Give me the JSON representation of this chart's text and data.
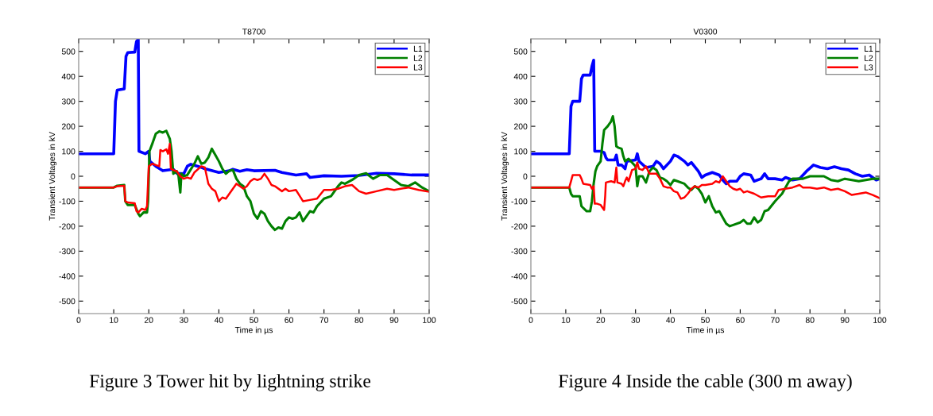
{
  "chart_data": [
    {
      "type": "line",
      "title": "T8700",
      "xlabel": "Time in µs",
      "ylabel": "Transient Voltages in kV",
      "xlim": [
        0,
        100
      ],
      "ylim": [
        -550,
        550
      ],
      "xticks": [
        0,
        10,
        20,
        30,
        40,
        50,
        60,
        70,
        80,
        90,
        100
      ],
      "yticks": [
        -500,
        -400,
        -300,
        -200,
        -100,
        0,
        100,
        200,
        300,
        400,
        500
      ],
      "grid": false,
      "legend": "top right",
      "marker": "none",
      "line_style": "solid",
      "annotations": [
        "Figure 3 Tower hit by lightning strike"
      ],
      "series": [
        {
          "name": "L1",
          "color": "#0000ff",
          "x": [
            0,
            10,
            10.5,
            11,
            13,
            13.5,
            14,
            16,
            16.5,
            17,
            17.2,
            19,
            20,
            20.3,
            22,
            24,
            27,
            28,
            30,
            31,
            32,
            34,
            36,
            40,
            43,
            44,
            46,
            48,
            50,
            56,
            58,
            62,
            65,
            66,
            70,
            75,
            80,
            85,
            90,
            95,
            100
          ],
          "values": [
            90,
            90,
            300,
            345,
            350,
            480,
            495,
            497,
            540,
            548,
            100,
            90,
            100,
            60,
            40,
            22,
            28,
            12,
            10,
            40,
            48,
            40,
            30,
            15,
            22,
            28,
            20,
            26,
            22,
            24,
            15,
            5,
            10,
            -5,
            2,
            0,
            3,
            12,
            10,
            5,
            5
          ]
        },
        {
          "name": "L2",
          "color": "#008000",
          "x": [
            0,
            10,
            11,
            13,
            13.3,
            14,
            16,
            17,
            17.5,
            18.5,
            19.5,
            19.8,
            20.2,
            21,
            22,
            23,
            24,
            25,
            26,
            26.5,
            27,
            28,
            28.5,
            29,
            29.3,
            30,
            31,
            33,
            34,
            35,
            36,
            37,
            38,
            39,
            40,
            41,
            42,
            43,
            44,
            45,
            46,
            47,
            48,
            49,
            50,
            51,
            52,
            53,
            54,
            55,
            56,
            57,
            58,
            59,
            60,
            61,
            62,
            63,
            64,
            65,
            66,
            67,
            68,
            70,
            72,
            74,
            75,
            76,
            78,
            80,
            82,
            84,
            86,
            88,
            90,
            92,
            94,
            96,
            98,
            100
          ],
          "values": [
            -45,
            -45,
            -38,
            -35,
            -100,
            -115,
            -115,
            -150,
            -160,
            -145,
            -145,
            -100,
            100,
            130,
            170,
            180,
            175,
            182,
            150,
            100,
            10,
            20,
            0,
            -65,
            10,
            0,
            5,
            50,
            80,
            50,
            55,
            75,
            110,
            85,
            60,
            30,
            10,
            22,
            25,
            -10,
            -30,
            -40,
            -80,
            -100,
            -150,
            -170,
            -140,
            -150,
            -180,
            -200,
            -215,
            -205,
            -210,
            -180,
            -165,
            -170,
            -165,
            -145,
            -180,
            -160,
            -140,
            -145,
            -120,
            -90,
            -80,
            -40,
            -25,
            -30,
            -15,
            5,
            12,
            -10,
            5,
            5,
            -15,
            -35,
            -40,
            -25,
            -45,
            -60
          ]
        },
        {
          "name": "L3",
          "color": "#ff0000",
          "x": [
            0,
            10,
            11,
            13,
            13.3,
            14,
            16,
            16.5,
            17,
            18,
            19,
            19.5,
            20,
            21,
            22,
            23,
            23.3,
            24,
            25,
            25.5,
            26,
            26.3,
            27,
            28,
            29,
            30,
            31,
            32,
            33,
            35,
            36,
            37,
            38,
            39,
            40,
            41,
            42,
            43,
            44,
            45,
            46,
            47,
            48,
            49,
            50,
            51,
            52,
            53,
            54,
            55,
            56,
            58,
            59,
            60,
            62,
            64,
            66,
            68,
            70,
            72,
            74,
            76,
            78,
            80,
            82,
            85,
            88,
            90,
            94,
            97,
            100
          ],
          "values": [
            -45,
            -45,
            -40,
            -38,
            -100,
            -105,
            -108,
            -140,
            -145,
            -130,
            -135,
            -120,
            40,
            50,
            45,
            40,
            105,
            100,
            108,
            90,
            130,
            30,
            25,
            20,
            0,
            -10,
            -5,
            -10,
            15,
            40,
            35,
            -30,
            -50,
            -60,
            -100,
            -85,
            -90,
            -70,
            -50,
            -30,
            -40,
            -50,
            -40,
            -20,
            -10,
            -15,
            -10,
            10,
            -10,
            -35,
            -40,
            -60,
            -50,
            -60,
            -55,
            -100,
            -95,
            -90,
            -55,
            -55,
            -50,
            -40,
            -35,
            -60,
            -70,
            -60,
            -50,
            -55,
            -45,
            -55,
            -62
          ]
        }
      ]
    },
    {
      "type": "line",
      "title": "V0300",
      "xlabel": "Time in µs",
      "ylabel": "Transient Voltages in kV",
      "xlim": [
        0,
        100
      ],
      "ylim": [
        -550,
        550
      ],
      "xticks": [
        0,
        10,
        20,
        30,
        40,
        50,
        60,
        70,
        80,
        90,
        100
      ],
      "yticks": [
        -500,
        -400,
        -300,
        -200,
        -100,
        0,
        100,
        200,
        300,
        400,
        500
      ],
      "grid": false,
      "legend": "top right",
      "marker": "none",
      "line_style": "solid",
      "annotations": [
        "Figure 4 Inside the cable (300 m away)"
      ],
      "series": [
        {
          "name": "L1",
          "color": "#0000ff",
          "x": [
            0,
            11,
            11.5,
            12,
            14,
            14.5,
            15,
            17,
            17.5,
            18,
            18.3,
            20,
            21,
            21.5,
            22,
            24,
            24.5,
            25,
            26,
            27,
            27.5,
            30,
            30.5,
            31,
            33,
            35,
            36,
            37,
            38,
            40,
            41,
            42,
            44,
            45,
            46,
            48,
            49,
            50,
            52,
            54,
            55,
            56,
            57,
            59,
            60,
            61,
            63,
            64,
            66,
            67,
            68,
            70,
            72,
            73,
            75,
            77,
            79,
            81,
            83,
            85,
            87,
            89,
            91,
            93,
            95,
            97,
            99,
            100
          ],
          "values": [
            90,
            90,
            280,
            300,
            300,
            390,
            405,
            405,
            440,
            465,
            100,
            100,
            95,
            75,
            65,
            65,
            85,
            45,
            45,
            30,
            60,
            65,
            90,
            60,
            35,
            40,
            60,
            50,
            30,
            60,
            85,
            80,
            60,
            45,
            55,
            20,
            -5,
            5,
            15,
            5,
            -15,
            -30,
            -20,
            -20,
            0,
            10,
            5,
            -20,
            -10,
            10,
            -10,
            -10,
            -15,
            -5,
            -15,
            -10,
            20,
            45,
            35,
            30,
            38,
            30,
            25,
            10,
            0,
            5,
            -15,
            -10
          ]
        },
        {
          "name": "L2",
          "color": "#008000",
          "x": [
            0,
            11,
            11.5,
            12,
            14,
            14.5,
            16,
            17,
            17.5,
            18,
            18.5,
            19,
            20,
            20.5,
            21,
            22,
            23,
            23.5,
            24,
            24.5,
            25,
            26,
            26.5,
            27,
            28,
            29,
            30,
            30.5,
            31,
            32,
            33,
            34,
            35,
            36,
            37,
            38,
            39,
            40,
            41,
            42,
            44,
            45,
            46,
            47,
            48,
            49,
            50,
            51,
            52,
            53,
            54,
            55,
            56,
            57,
            58,
            60,
            61,
            62,
            63,
            64,
            65,
            66,
            67,
            68,
            70,
            72,
            74,
            75,
            78,
            80,
            82,
            84,
            86,
            88,
            90,
            92,
            94,
            96,
            98,
            100
          ],
          "values": [
            -45,
            -45,
            -70,
            -80,
            -80,
            -120,
            -140,
            -140,
            -100,
            -30,
            20,
            40,
            60,
            130,
            185,
            200,
            220,
            240,
            200,
            120,
            115,
            110,
            80,
            60,
            70,
            55,
            40,
            -40,
            0,
            0,
            -25,
            20,
            35,
            25,
            -5,
            -10,
            -20,
            -35,
            -15,
            -20,
            -30,
            -45,
            -55,
            -40,
            -50,
            -70,
            -105,
            -80,
            -120,
            -145,
            -140,
            -165,
            -190,
            -200,
            -195,
            -185,
            -175,
            -190,
            -190,
            -165,
            -185,
            -175,
            -140,
            -135,
            -100,
            -70,
            -20,
            -10,
            -10,
            0,
            0,
            0,
            -15,
            -20,
            -10,
            -15,
            -20,
            -15,
            -10,
            -10
          ]
        },
        {
          "name": "L3",
          "color": "#ff0000",
          "x": [
            0,
            11,
            11.5,
            12,
            14,
            14.5,
            15,
            17,
            17.5,
            18,
            18.3,
            19,
            20,
            21,
            21.3,
            21.5,
            23,
            24,
            24.5,
            24.8,
            26,
            26.5,
            27,
            27.5,
            28,
            29,
            30,
            30.5,
            31,
            32,
            33,
            34,
            35,
            36,
            37,
            38,
            39,
            40,
            41,
            42,
            43,
            44,
            45,
            46,
            47,
            48,
            49,
            50,
            52,
            53,
            54,
            55,
            56,
            57,
            58,
            59,
            60,
            61,
            62,
            64,
            66,
            68,
            70,
            71,
            73,
            75,
            77,
            78,
            80,
            82,
            84,
            86,
            88,
            90,
            92,
            94,
            96,
            98,
            100
          ],
          "values": [
            -45,
            -45,
            -20,
            5,
            5,
            -10,
            -30,
            -35,
            -50,
            -40,
            -110,
            -110,
            -115,
            -135,
            -80,
            -25,
            -20,
            -25,
            35,
            -25,
            -30,
            -40,
            -20,
            -5,
            -20,
            25,
            30,
            55,
            30,
            25,
            40,
            10,
            10,
            10,
            -10,
            -40,
            -45,
            -45,
            -60,
            -65,
            -90,
            -85,
            -70,
            -50,
            -40,
            -45,
            -35,
            -35,
            -30,
            -20,
            -25,
            0,
            -20,
            -40,
            -50,
            -55,
            -50,
            -65,
            -60,
            -70,
            -85,
            -80,
            -80,
            -55,
            -50,
            -45,
            -35,
            -45,
            -45,
            -50,
            -45,
            -55,
            -50,
            -60,
            -75,
            -70,
            -65,
            -75,
            -88
          ]
        }
      ]
    }
  ]
}
